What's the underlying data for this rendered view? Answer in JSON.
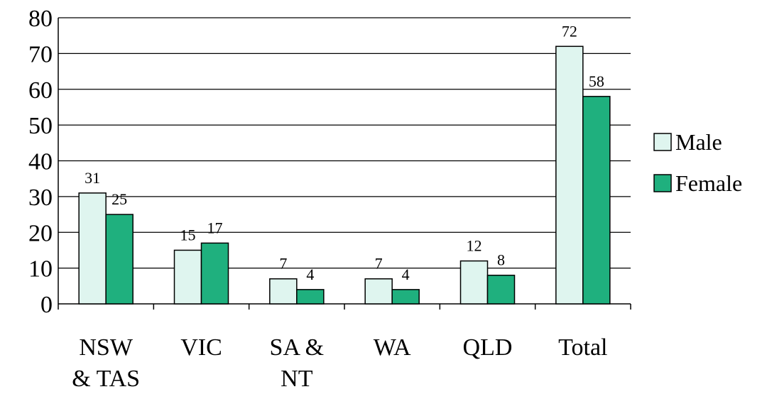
{
  "chart_data": {
    "type": "bar",
    "title": "",
    "xlabel": "",
    "ylabel": "",
    "ylim": [
      0,
      80
    ],
    "yticks": [
      0,
      10,
      20,
      30,
      40,
      50,
      60,
      70,
      80
    ],
    "grid": true,
    "legend_position": "right",
    "categories": [
      [
        "NSW",
        "& TAS"
      ],
      [
        "VIC"
      ],
      [
        "SA &",
        "NT"
      ],
      [
        "WA"
      ],
      [
        "QLD"
      ],
      [
        "Total"
      ]
    ],
    "series": [
      {
        "name": "Male",
        "values": [
          31,
          15,
          7,
          7,
          12,
          72
        ],
        "color": "#dff5ef"
      },
      {
        "name": "Female",
        "values": [
          25,
          17,
          4,
          4,
          8,
          58
        ],
        "color": "#1fb07e"
      }
    ]
  }
}
